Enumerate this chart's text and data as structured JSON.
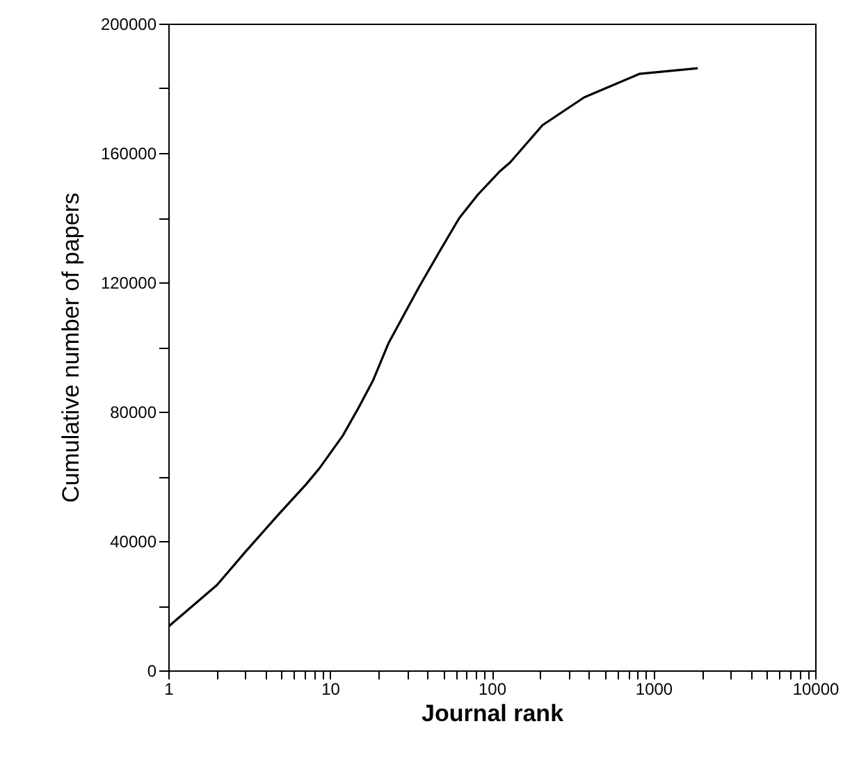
{
  "chart_data": {
    "type": "line",
    "xlabel": "Journal rank",
    "ylabel": "Cumulative number of papers",
    "log": "x",
    "grid": false,
    "xlim": [
      1,
      10000
    ],
    "ylim": [
      0,
      200000
    ],
    "xticks": [
      1,
      {
        "value": 2,
        "label": null
      },
      {
        "value": 3,
        "label": null
      },
      {
        "value": 4,
        "label": null
      },
      {
        "value": 5,
        "label": null
      },
      {
        "value": 6,
        "label": null
      },
      {
        "value": 7,
        "label": null
      },
      {
        "value": 8,
        "label": null
      },
      {
        "value": 9,
        "label": null
      },
      10,
      {
        "value": 20,
        "label": null
      },
      {
        "value": 30,
        "label": null
      },
      {
        "value": 40,
        "label": null
      },
      {
        "value": 50,
        "label": null
      },
      {
        "value": 60,
        "label": null
      },
      {
        "value": 70,
        "label": null
      },
      {
        "value": 80,
        "label": null
      },
      {
        "value": 90,
        "label": null
      },
      100,
      {
        "value": 200,
        "label": null
      },
      {
        "value": 300,
        "label": null
      },
      {
        "value": 400,
        "label": null
      },
      {
        "value": 500,
        "label": null
      },
      {
        "value": 600,
        "label": null
      },
      {
        "value": 700,
        "label": null
      },
      {
        "value": 800,
        "label": null
      },
      {
        "value": 900,
        "label": null
      },
      1000,
      {
        "value": 2000,
        "label": null
      },
      {
        "value": 3000,
        "label": null
      },
      {
        "value": 4000,
        "label": null
      },
      {
        "value": 5000,
        "label": null
      },
      {
        "value": 6000,
        "label": null
      },
      {
        "value": 7000,
        "label": null
      },
      {
        "value": 8000,
        "label": null
      },
      {
        "value": 9000,
        "label": null
      },
      10000
    ],
    "yticks": [
      0,
      {
        "value": 20000,
        "label": null
      },
      40000,
      {
        "value": 60000,
        "label": null
      },
      80000,
      {
        "value": 100000,
        "label": null
      },
      120000,
      {
        "value": 140000,
        "label": null
      },
      160000,
      {
        "value": 180000,
        "label": null
      },
      200000
    ],
    "series": [
      {
        "color": "#000000",
        "x": [
          1,
          2,
          3,
          4.8,
          7.1,
          8.6,
          12,
          15,
          18.5,
          23,
          29,
          36,
          48,
          63,
          82,
          112,
          130,
          206,
          373,
          824,
          1880
        ],
        "values": [
          13500,
          26400,
          36700,
          48200,
          57500,
          62500,
          72600,
          81200,
          89800,
          101200,
          110500,
          119100,
          129900,
          139900,
          147100,
          154300,
          157100,
          168600,
          177200,
          184500,
          186200
        ]
      }
    ]
  }
}
